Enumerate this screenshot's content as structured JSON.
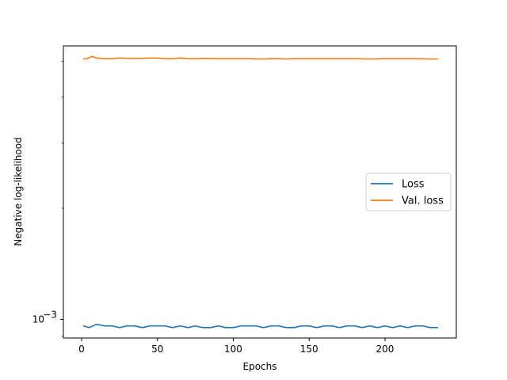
{
  "chart_data": {
    "type": "line",
    "title": "",
    "xlabel": "Epochs",
    "ylabel": "Negative log-likelihood",
    "yscale": "log",
    "xlim": [
      -12,
      247
    ],
    "ylim": [
      0.00089,
      0.0055
    ],
    "xticks": [
      0,
      50,
      100,
      150,
      200
    ],
    "yticks": [
      0.001
    ],
    "ytick_labels": [
      {
        "base": "10",
        "exp": "−3"
      }
    ],
    "grid": false,
    "legend_position": "center-right",
    "series": [
      {
        "name": "Loss",
        "color": "#1f77b4",
        "x": [
          1,
          5,
          10,
          15,
          20,
          25,
          30,
          35,
          40,
          45,
          50,
          55,
          60,
          65,
          70,
          75,
          80,
          85,
          90,
          95,
          100,
          105,
          110,
          115,
          120,
          125,
          130,
          135,
          140,
          145,
          150,
          155,
          160,
          165,
          170,
          175,
          180,
          185,
          190,
          195,
          200,
          205,
          210,
          215,
          220,
          225,
          230,
          235
        ],
        "y": [
          0.00096,
          0.00095,
          0.00097,
          0.00096,
          0.00096,
          0.00095,
          0.00096,
          0.00096,
          0.00095,
          0.00096,
          0.00096,
          0.00096,
          0.00095,
          0.00096,
          0.00095,
          0.00096,
          0.00095,
          0.00095,
          0.00096,
          0.00095,
          0.00095,
          0.00096,
          0.00096,
          0.00096,
          0.00095,
          0.00096,
          0.00096,
          0.00095,
          0.00095,
          0.00096,
          0.00096,
          0.00095,
          0.00096,
          0.00096,
          0.00095,
          0.00096,
          0.00096,
          0.00095,
          0.00096,
          0.00095,
          0.00096,
          0.00095,
          0.00096,
          0.00095,
          0.00096,
          0.00096,
          0.00095,
          0.00095
        ]
      },
      {
        "name": "Val. loss",
        "color": "#ff7f0e",
        "x": [
          1,
          3,
          5,
          7,
          10,
          15,
          20,
          25,
          30,
          35,
          40,
          45,
          50,
          55,
          60,
          65,
          70,
          75,
          80,
          90,
          100,
          110,
          120,
          125,
          130,
          135,
          140,
          150,
          160,
          170,
          180,
          190,
          200,
          210,
          220,
          230,
          235
        ],
        "y": [
          0.00508,
          0.00507,
          0.00511,
          0.00515,
          0.0051,
          0.00508,
          0.00508,
          0.0051,
          0.00509,
          0.00509,
          0.00509,
          0.0051,
          0.0051,
          0.00508,
          0.00508,
          0.0051,
          0.00508,
          0.00508,
          0.00509,
          0.00508,
          0.00508,
          0.00508,
          0.00507,
          0.00508,
          0.00508,
          0.00507,
          0.00508,
          0.00508,
          0.00508,
          0.00508,
          0.00508,
          0.00507,
          0.00508,
          0.00508,
          0.00508,
          0.00507,
          0.00507
        ]
      }
    ]
  }
}
